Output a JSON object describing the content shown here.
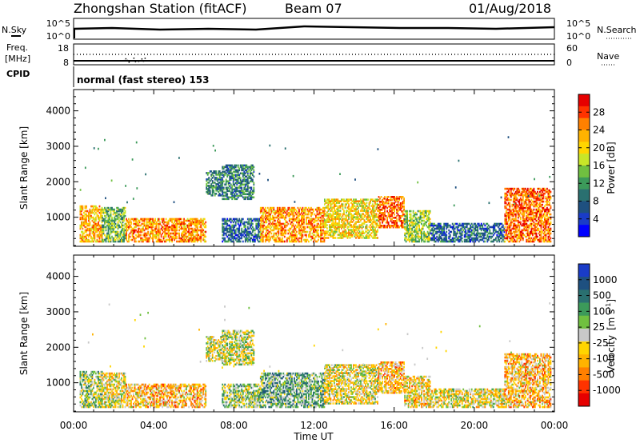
{
  "header": {
    "station": "Zhongshan Station (fitACF)",
    "beam": "Beam 07",
    "date": "01/Aug/2018"
  },
  "nsky_panel": {
    "left_label": "N.Sky",
    "left_ticks": [
      "10^5",
      "10^0"
    ],
    "right_label": "N.Search",
    "right_ticks": [
      "10^5",
      "10^0"
    ]
  },
  "freq_panel": {
    "left_label_1": "Freq.",
    "left_label_2": "[MHz]",
    "left_ticks": [
      "18",
      "8"
    ],
    "right_label": "Nave",
    "right_ticks": [
      "60",
      "0"
    ]
  },
  "cpid": {
    "label": "CPID",
    "text": "normal (fast stereo) 153"
  },
  "x_axis": {
    "title": "Time UT",
    "ticks": [
      "00:00",
      "04:00",
      "08:00",
      "12:00",
      "16:00",
      "20:00",
      "00:00"
    ]
  },
  "power_colorbar": {
    "title": "Power [dB]",
    "labels": [
      "28",
      "24",
      "20",
      "16",
      "12",
      "8",
      "4"
    ],
    "colors": [
      "#e60000",
      "#ff3300",
      "#ff8000",
      "#ffb300",
      "#ffd500",
      "#c8e628",
      "#70c040",
      "#3c9a5a",
      "#2a7070",
      "#1e5080",
      "#1a3cc8",
      "#0000ff"
    ]
  },
  "velocity_colorbar": {
    "title_main": "Velocity",
    "title_unit": "[m s",
    "title_exp": "-1",
    "title_close": "]",
    "labels": [
      "1000",
      "500",
      "100",
      "25",
      "-25",
      "-100",
      "-500",
      "-1000"
    ],
    "colors": [
      "#1a3cc8",
      "#1e5080",
      "#2a7070",
      "#3c9a5a",
      "#70c040",
      "#c8c8c8",
      "#ffd500",
      "#ffb300",
      "#ff8000",
      "#ff3300",
      "#e60000"
    ]
  },
  "chart_data": [
    {
      "type": "heatmap",
      "panel": "power",
      "ylabel": "Slant Range [km]",
      "xlabel": "",
      "xlim": [
        0,
        24
      ],
      "ylim": [
        180,
        4600
      ],
      "yticks": [
        1000,
        2000,
        3000,
        4000
      ],
      "colorbar_title": "Power [dB]",
      "clim": [
        0,
        32
      ],
      "regions": [
        {
          "t0": 0.3,
          "t1": 1.4,
          "r0": 300,
          "r1": 1300,
          "v": 22
        },
        {
          "t0": 1.4,
          "t1": 2.6,
          "r0": 300,
          "r1": 1250,
          "v": 14
        },
        {
          "t0": 2.6,
          "t1": 6.6,
          "r0": 300,
          "r1": 950,
          "v": 24
        },
        {
          "t0": 6.6,
          "t1": 7.4,
          "r0": 1600,
          "r1": 2300,
          "v": 10
        },
        {
          "t0": 7.4,
          "t1": 9.3,
          "r0": 300,
          "r1": 950,
          "v": 8
        },
        {
          "t0": 7.4,
          "t1": 9.0,
          "r0": 1500,
          "r1": 2450,
          "v": 10
        },
        {
          "t0": 9.3,
          "t1": 12.5,
          "r0": 300,
          "r1": 1250,
          "v": 24
        },
        {
          "t0": 12.5,
          "t1": 15.2,
          "r0": 400,
          "r1": 1500,
          "v": 20
        },
        {
          "t0": 15.2,
          "t1": 16.5,
          "r0": 700,
          "r1": 1600,
          "v": 26
        },
        {
          "t0": 16.5,
          "t1": 17.8,
          "r0": 300,
          "r1": 1200,
          "v": 16
        },
        {
          "t0": 17.8,
          "t1": 21.5,
          "r0": 300,
          "r1": 800,
          "v": 8
        },
        {
          "t0": 21.5,
          "t1": 23.8,
          "r0": 300,
          "r1": 1800,
          "v": 26
        }
      ]
    },
    {
      "type": "heatmap",
      "panel": "velocity",
      "ylabel": "Slant Range [km]",
      "xlabel": "Time UT",
      "xlim": [
        0,
        24
      ],
      "ylim": [
        180,
        4600
      ],
      "yticks": [
        1000,
        2000,
        3000,
        4000
      ],
      "colorbar_title": "Velocity [m s-1]",
      "clim": [
        -1000,
        1000
      ],
      "regions": [
        {
          "t0": 0.3,
          "t1": 1.4,
          "r0": 300,
          "r1": 1300,
          "v": 100
        },
        {
          "t0": 1.4,
          "t1": 2.6,
          "r0": 300,
          "r1": 1250,
          "v": -100
        },
        {
          "t0": 2.6,
          "t1": 6.6,
          "r0": 300,
          "r1": 950,
          "v": -300
        },
        {
          "t0": 6.6,
          "t1": 7.4,
          "r0": 1600,
          "r1": 2300,
          "v": -25
        },
        {
          "t0": 7.4,
          "t1": 9.3,
          "r0": 300,
          "r1": 950,
          "v": 100
        },
        {
          "t0": 7.4,
          "t1": 9.0,
          "r0": 1500,
          "r1": 2450,
          "v": -25
        },
        {
          "t0": 9.3,
          "t1": 12.5,
          "r0": 300,
          "r1": 1250,
          "v": 300
        },
        {
          "t0": 12.5,
          "t1": 15.2,
          "r0": 400,
          "r1": 1500,
          "v": -100
        },
        {
          "t0": 15.2,
          "t1": 16.5,
          "r0": 700,
          "r1": 1600,
          "v": -300
        },
        {
          "t0": 16.5,
          "t1": 17.8,
          "r0": 300,
          "r1": 1200,
          "v": -200
        },
        {
          "t0": 17.8,
          "t1": 21.5,
          "r0": 300,
          "r1": 800,
          "v": -100
        },
        {
          "t0": 21.5,
          "t1": 23.8,
          "r0": 300,
          "r1": 1800,
          "v": -300
        }
      ]
    }
  ]
}
